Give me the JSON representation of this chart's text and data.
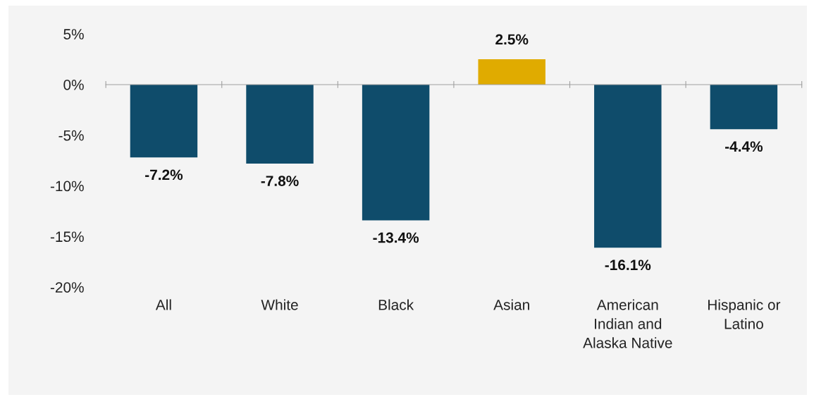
{
  "chart_data": {
    "type": "bar",
    "categories": [
      "All",
      "White",
      "Black",
      "Asian",
      "American\nIndian and\nAlaska Native",
      "Hispanic or\nLatino"
    ],
    "values": [
      -7.2,
      -7.8,
      -13.4,
      2.5,
      -16.1,
      -4.4
    ],
    "colors": [
      "#0f4c6b",
      "#0f4c6b",
      "#0f4c6b",
      "#e0ab00",
      "#0f4c6b",
      "#0f4c6b"
    ],
    "value_labels": [
      "-7.2%",
      "-7.8%",
      "-13.4%",
      "2.5%",
      "-16.1%",
      "-4.4%"
    ],
    "ylim": [
      -20,
      5
    ],
    "yticks": [
      {
        "value": 5,
        "label": "5%"
      },
      {
        "value": 0,
        "label": "0%"
      },
      {
        "value": -5,
        "label": "-5%"
      },
      {
        "value": -10,
        "label": "-10%"
      },
      {
        "value": -15,
        "label": "-15%"
      },
      {
        "value": -20,
        "label": "-20%"
      }
    ],
    "legend": false
  }
}
